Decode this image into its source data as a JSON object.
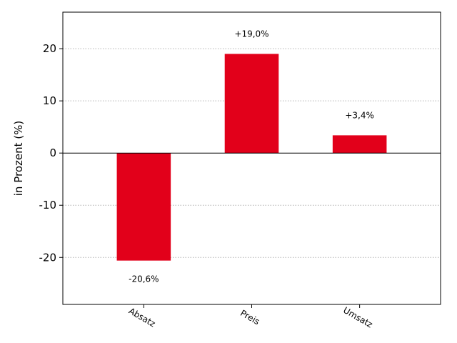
{
  "chart_data": {
    "type": "bar",
    "categories": [
      "Absatz",
      "Preis",
      "Umsatz"
    ],
    "values": [
      -20.6,
      19.0,
      3.4
    ],
    "data_labels": [
      "-20,6%",
      "+19,0%",
      "+3,4%"
    ],
    "ylabel": "in Prozent (%)",
    "ylim": [
      -29,
      27
    ],
    "xlim": [
      -0.75,
      2.75
    ],
    "yticks": [
      -20,
      -10,
      0,
      10,
      20
    ],
    "ytick_labels": [
      "-20",
      "-10",
      "0",
      "10",
      "20"
    ],
    "grid": "y-dotted",
    "bar_color": "#e2001a",
    "baseline": 0
  }
}
